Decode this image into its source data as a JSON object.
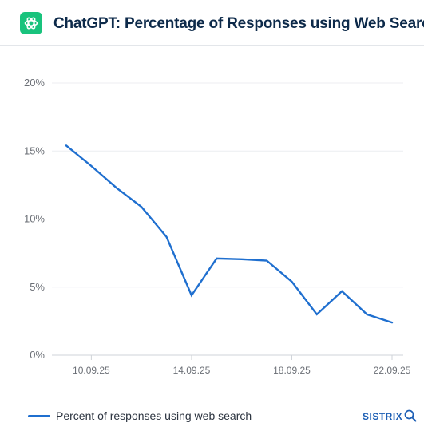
{
  "header": {
    "title": "ChatGPT: Percentage of Responses using Web Search",
    "logo_icon": "openai-logo-icon",
    "logo_color": "#19c37d"
  },
  "chart_data": {
    "type": "line",
    "title": "ChatGPT: Percentage of Responses using Web Search",
    "xlabel": "",
    "ylabel": "",
    "x": [
      "09.09.25",
      "10.09.25",
      "11.09.25",
      "12.09.25",
      "13.09.25",
      "14.09.25",
      "15.09.25",
      "16.09.25",
      "17.09.25",
      "18.09.25",
      "19.09.25",
      "20.09.25",
      "21.09.25",
      "22.09.25"
    ],
    "series": [
      {
        "name": "Percent of responses using web search",
        "color": "#1f6fcf",
        "values": [
          15.4,
          13.9,
          12.3,
          10.9,
          8.7,
          4.4,
          7.1,
          7.05,
          6.95,
          5.4,
          3.0,
          4.7,
          3.0,
          2.4
        ]
      }
    ],
    "xticks": [
      "10.09.25",
      "14.09.25",
      "18.09.25",
      "22.09.25"
    ],
    "yticks": [
      0,
      5,
      10,
      15,
      20
    ],
    "ytick_labels": [
      "0%",
      "5%",
      "10%",
      "15%",
      "20%"
    ],
    "ylim": [
      0,
      20
    ],
    "grid": true,
    "legend_position": "bottom-left"
  },
  "legend": {
    "label": "Percent of responses using web search",
    "color": "#1f6fcf"
  },
  "brand": {
    "text": "SISTRIX",
    "icon": "magnifier-icon",
    "color": "#1d5fb5"
  }
}
